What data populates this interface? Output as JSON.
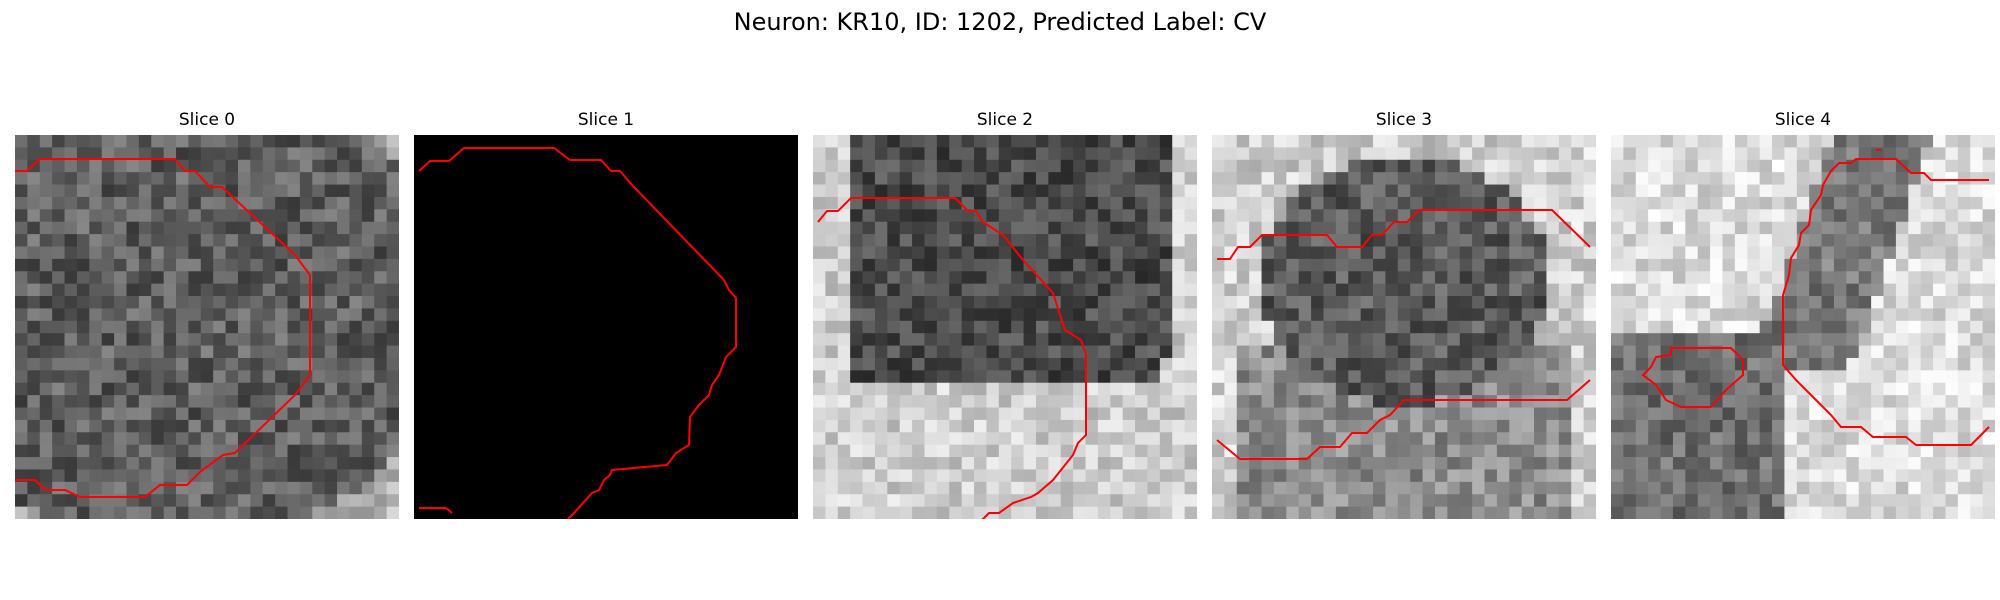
{
  "figure": {
    "title": "Neuron: KR10, ID: 1202, Predicted Label: CV"
  },
  "slices": [
    {
      "title": "Slice 0",
      "style": "dark_blob"
    },
    {
      "title": "Slice 1",
      "style": "black"
    },
    {
      "title": "Slice 2",
      "style": "top_dark"
    },
    {
      "title": "Slice 3",
      "style": "mixed"
    },
    {
      "title": "Slice 4",
      "style": "light_cross"
    }
  ],
  "contour_color": "#ff0000",
  "grid": {
    "cells": 31
  }
}
